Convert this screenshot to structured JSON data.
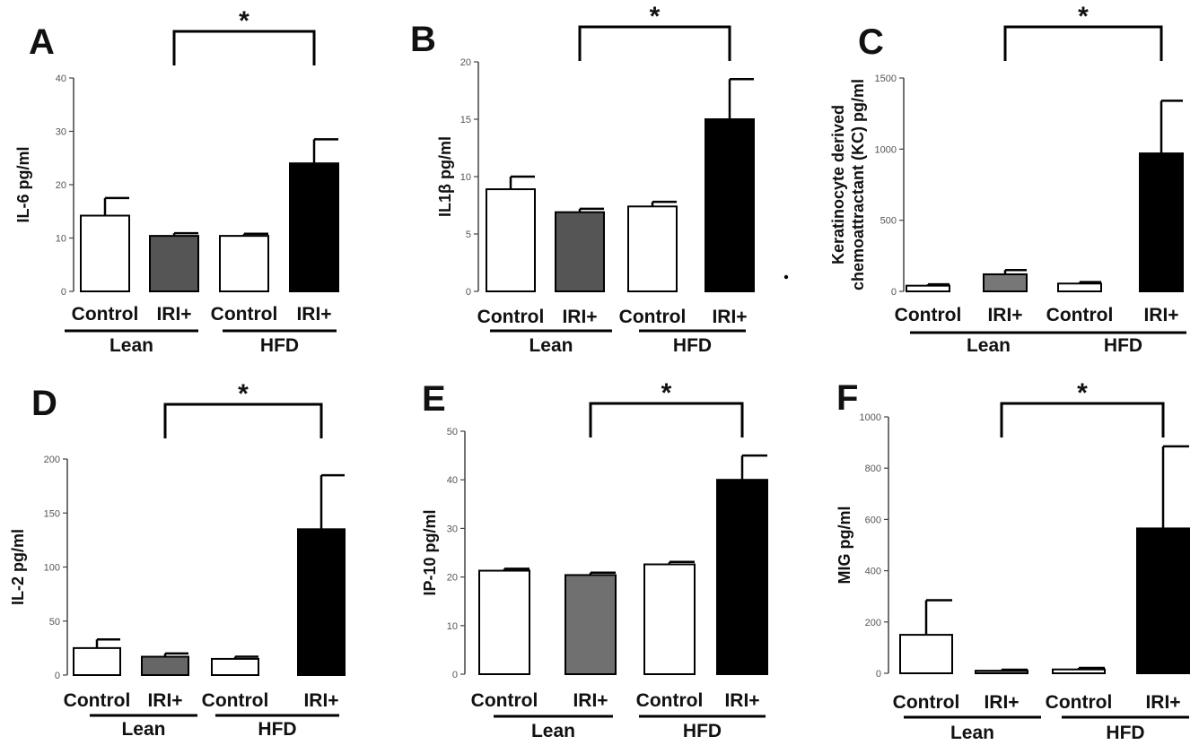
{
  "chart_data": [
    {
      "panel": "A",
      "type": "bar",
      "ylabel": "IL-6 pg/ml",
      "ylim": [
        0,
        40
      ],
      "yticks": [
        "0",
        "10",
        "20",
        "30",
        "40"
      ],
      "categories": [
        "Control",
        "IRI+",
        "Control",
        "IRI+"
      ],
      "groups": [
        "Lean",
        "HFD"
      ],
      "values": [
        14.2,
        10.4,
        10.4,
        24.0
      ],
      "errors": [
        3.3,
        0.5,
        0.4,
        4.5
      ],
      "colors": [
        "#ffffff",
        "#555555",
        "#ffffff",
        "#000000"
      ],
      "significance": "*"
    },
    {
      "panel": "B",
      "type": "bar",
      "ylabel": "IL1β pg/ml",
      "ylim": [
        0,
        20
      ],
      "yticks": [
        "0",
        "5",
        "10",
        "15",
        "20"
      ],
      "categories": [
        "Control",
        "IRI+",
        "Control",
        "IRI+"
      ],
      "groups": [
        "Lean",
        "HFD"
      ],
      "values": [
        8.9,
        6.9,
        7.4,
        15.0
      ],
      "errors": [
        1.1,
        0.3,
        0.4,
        3.5
      ],
      "colors": [
        "#ffffff",
        "#555555",
        "#ffffff",
        "#000000"
      ],
      "significance": "*"
    },
    {
      "panel": "C",
      "type": "bar",
      "ylabel": "Keratinocyte derived chemoattractant (KC) pg/ml",
      "ylim": [
        0,
        1500
      ],
      "yticks": [
        "0",
        "500",
        "1000",
        "1500"
      ],
      "categories": [
        "Control",
        "IRI+",
        "Control",
        "IRI+"
      ],
      "groups": [
        "Lean",
        "HFD"
      ],
      "values": [
        40,
        120,
        55,
        970
      ],
      "errors": [
        10,
        30,
        10,
        370
      ],
      "colors": [
        "#ffffff",
        "#777777",
        "#ffffff",
        "#000000"
      ],
      "significance": "*"
    },
    {
      "panel": "D",
      "type": "bar",
      "ylabel": "IL-2 pg/ml",
      "ylim": [
        0,
        200
      ],
      "yticks": [
        "0",
        "50",
        "100",
        "150",
        "200"
      ],
      "categories": [
        "Control",
        "IRI+",
        "Control",
        "IRI+"
      ],
      "groups": [
        "Lean",
        "HFD"
      ],
      "values": [
        25,
        17,
        15,
        135
      ],
      "errors": [
        8,
        3,
        2,
        50
      ],
      "colors": [
        "#ffffff",
        "#666666",
        "#ffffff",
        "#000000"
      ],
      "significance": "*"
    },
    {
      "panel": "E",
      "type": "bar",
      "ylabel": "IP-10 pg/ml",
      "ylim": [
        0,
        50
      ],
      "yticks": [
        "0",
        "10",
        "20",
        "30",
        "40",
        "50"
      ],
      "categories": [
        "Control",
        "IRI+",
        "Control",
        "IRI+"
      ],
      "groups": [
        "Lean",
        "HFD"
      ],
      "values": [
        21.3,
        20.4,
        22.6,
        40.0
      ],
      "errors": [
        0.4,
        0.5,
        0.5,
        5.0
      ],
      "colors": [
        "#ffffff",
        "#707070",
        "#ffffff",
        "#000000"
      ],
      "significance": "*"
    },
    {
      "panel": "F",
      "type": "bar",
      "ylabel": "MIG pg/ml",
      "ylim": [
        0,
        1000
      ],
      "yticks": [
        "0",
        "200",
        "400",
        "600",
        "800",
        "1000"
      ],
      "categories": [
        "Control",
        "IRI+",
        "Control",
        "IRI+"
      ],
      "groups": [
        "Lean",
        "HFD"
      ],
      "values": [
        150,
        10,
        15,
        565
      ],
      "errors": [
        135,
        4,
        6,
        320
      ],
      "colors": [
        "#ffffff",
        "#888888",
        "#ffffff",
        "#000000"
      ],
      "significance": "*"
    }
  ]
}
